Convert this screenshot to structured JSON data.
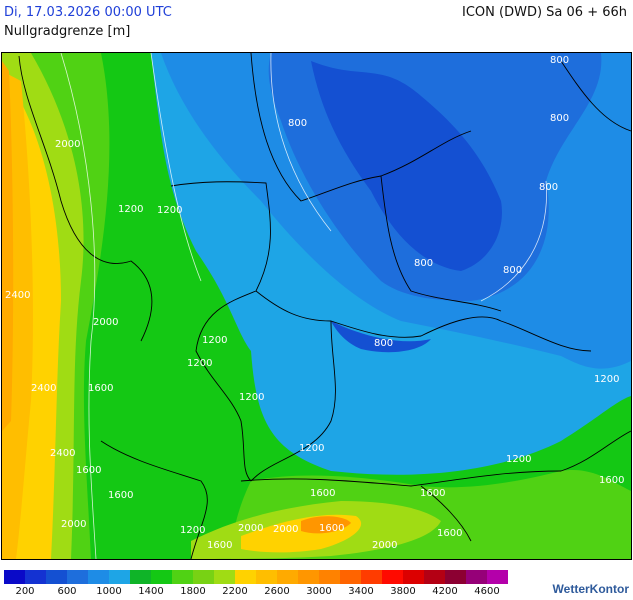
{
  "header": {
    "valid_time": "Di, 17.03.2026 00:00 UTC",
    "model_run": "ICON (DWD) Sa 06 + 66h",
    "parameter": "Nullgradgrenze [m]"
  },
  "map": {
    "contour_labels": [
      "800",
      "800",
      "800",
      "800",
      "800",
      "800",
      "800",
      "1200",
      "1200",
      "1200",
      "1200",
      "1200",
      "1200",
      "1200",
      "1200",
      "1200",
      "1600",
      "1600",
      "1600",
      "1600",
      "1600",
      "1600",
      "1600",
      "1600",
      "2000",
      "2000",
      "2000",
      "2000",
      "2000",
      "2400",
      "2400",
      "2400",
      "2000",
      "1600"
    ]
  },
  "legend": {
    "colors": [
      "#0a0ac8",
      "#1432d2",
      "#1450d2",
      "#1e6edc",
      "#1e8ce6",
      "#1ea5e6",
      "#0fb428",
      "#14c814",
      "#50d214",
      "#78d214",
      "#a0dc14",
      "#ffd200",
      "#ffbe00",
      "#ffaa00",
      "#ff9600",
      "#ff8200",
      "#ff6400",
      "#ff3c00",
      "#ff0a00",
      "#dc0000",
      "#b40014",
      "#8c0032",
      "#960078",
      "#b400aa"
    ],
    "ticks": [
      "200",
      "600",
      "1000",
      "1400",
      "1800",
      "2200",
      "2600",
      "3000",
      "3400",
      "3800",
      "4200",
      "4600"
    ]
  },
  "branding": {
    "logo_text": "WetterKontor"
  }
}
